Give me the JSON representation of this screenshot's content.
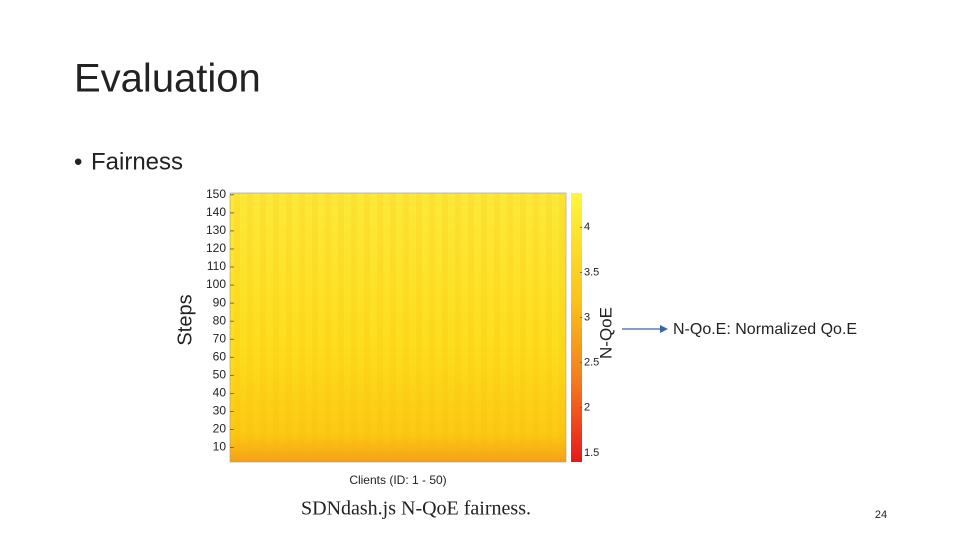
{
  "slide": {
    "title": "Evaluation",
    "bullet": "Fairness",
    "page_number": "24"
  },
  "chart_data": {
    "type": "heatmap",
    "xlabel": "Clients (ID: 1 - 50)",
    "ylabel": "Steps",
    "ylim": [
      2,
      151
    ],
    "yticks": [
      10,
      20,
      30,
      40,
      50,
      60,
      70,
      80,
      90,
      100,
      110,
      120,
      130,
      140,
      150
    ],
    "colorbar": {
      "label": "N-QoE",
      "lim": [
        1.4,
        4.38
      ],
      "ticks": [
        1.5,
        2,
        2.5,
        3,
        3.5,
        4
      ]
    },
    "annotation": "N-Qo.E: Normalized Qo.E",
    "caption": "SDNdash.js N-QoE fairness."
  }
}
